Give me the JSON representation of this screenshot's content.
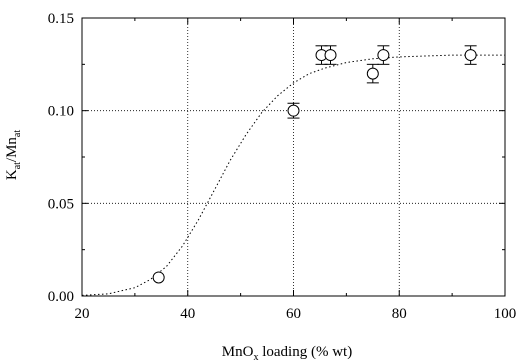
{
  "chart_data": {
    "type": "scatter",
    "title": "",
    "xlabel": {
      "main": "MnO",
      "sub": "x",
      "rest": " loading (% wt)"
    },
    "ylabel": {
      "part1": "K",
      "sub1": "at",
      "part2": "/Mn",
      "sub2": "at"
    },
    "xlim": [
      20,
      100
    ],
    "ylim": [
      0,
      0.15
    ],
    "x_ticks": [
      "20",
      "40",
      "60",
      "80",
      "100"
    ],
    "y_ticks": [
      "0.00",
      "0.05",
      "0.10",
      "0.15"
    ],
    "grid": true,
    "series": [
      {
        "marker": "open-circle",
        "points": [
          {
            "x": 34.5,
            "y": 0.01,
            "err": 0
          },
          {
            "x": 60.0,
            "y": 0.1,
            "err": 0.004
          },
          {
            "x": 65.3,
            "y": 0.13,
            "err": 0.005
          },
          {
            "x": 67.0,
            "y": 0.13,
            "err": 0.005
          },
          {
            "x": 75.0,
            "y": 0.12,
            "err": 0.005
          },
          {
            "x": 77.0,
            "y": 0.13,
            "err": 0.005
          },
          {
            "x": 93.5,
            "y": 0.13,
            "err": 0.005
          }
        ]
      }
    ],
    "fit_curve": {
      "style": "dotted",
      "x": [
        20,
        25,
        30,
        33,
        36,
        39,
        42,
        45,
        48,
        51,
        54,
        57,
        60,
        63,
        66,
        70,
        75,
        80,
        85,
        90,
        95,
        100
      ],
      "y": [
        0.0003,
        0.0012,
        0.0045,
        0.009,
        0.016,
        0.027,
        0.041,
        0.057,
        0.073,
        0.087,
        0.099,
        0.108,
        0.115,
        0.12,
        0.123,
        0.126,
        0.128,
        0.129,
        0.1295,
        0.13,
        0.13,
        0.13
      ]
    }
  }
}
